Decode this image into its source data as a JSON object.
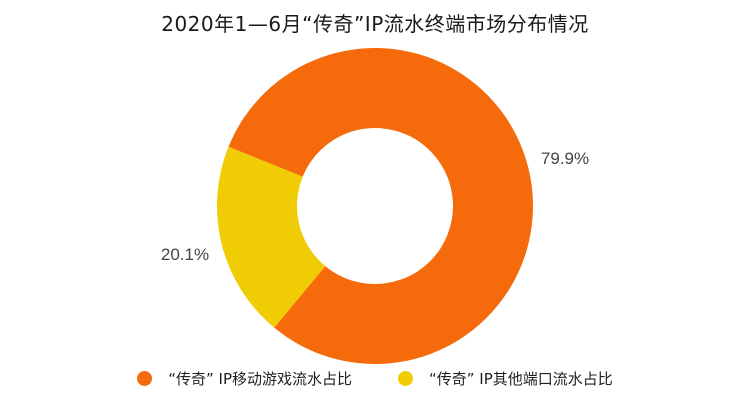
{
  "chart_data": {
    "type": "pie",
    "title": "2020年1—6月“传奇”IP流水终端市场分布情况",
    "series": [
      {
        "name": "“传奇” IP移动游戏流水占比",
        "value": 79.9,
        "label": "79.9%",
        "color": "#F56A0B"
      },
      {
        "name": "“传奇” IP其他端口流水占比",
        "value": 20.1,
        "label": "20.1%",
        "color": "#F0CC05"
      }
    ],
    "donut": true,
    "legend_position": "bottom"
  }
}
